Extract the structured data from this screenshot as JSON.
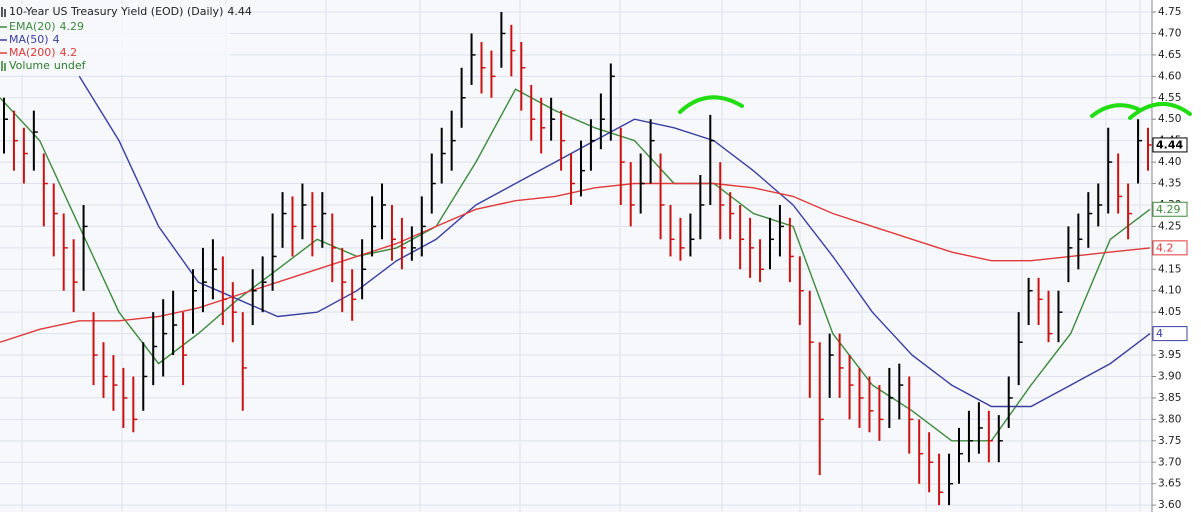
{
  "chart_data": {
    "type": "ohlc",
    "title": "10-Year US Treasury Yield (EOD) (Daily)",
    "last": 4.44,
    "up_color": "#000000",
    "down_color": "#cc1111",
    "high": [
      4.55,
      4.52,
      4.48,
      4.52,
      4.42,
      4.35,
      4.28,
      4.22,
      4.3,
      4.05,
      3.98,
      3.95,
      3.92,
      3.9,
      3.98,
      4.05,
      4.08,
      4.1,
      4.05,
      4.15,
      4.2,
      4.22,
      4.18,
      4.12,
      4.05,
      4.15,
      4.18,
      4.28,
      4.33,
      4.32,
      4.35,
      4.33,
      4.33,
      4.28,
      4.2,
      4.15,
      4.22,
      4.32,
      4.35,
      4.3,
      4.27,
      4.25,
      4.32,
      4.42,
      4.48,
      4.52,
      4.62,
      4.7,
      4.68,
      4.66,
      4.75,
      4.72,
      4.68,
      4.58,
      4.55,
      4.55,
      4.52,
      4.42,
      4.45,
      4.5,
      4.56,
      4.63,
      4.48,
      4.4,
      4.42,
      4.5,
      4.42,
      4.3,
      4.27,
      4.28,
      4.37,
      4.51,
      4.4,
      4.33,
      4.3,
      4.27,
      4.22,
      4.27,
      4.3,
      4.27,
      4.18,
      4.1,
      3.98,
      4.0,
      4.0,
      3.95,
      3.92,
      3.9,
      3.88,
      3.92,
      3.93,
      3.9,
      3.8,
      3.77,
      3.72,
      3.72,
      3.78,
      3.82,
      3.84,
      3.82,
      3.81,
      3.9,
      4.05,
      4.13,
      4.13,
      4.1,
      4.1,
      4.25,
      4.28,
      4.33,
      4.35,
      4.48,
      4.42,
      4.35,
      4.5,
      4.48
    ],
    "low": [
      4.42,
      4.38,
      4.35,
      4.38,
      4.25,
      4.18,
      4.1,
      4.05,
      4.1,
      3.88,
      3.85,
      3.82,
      3.78,
      3.77,
      3.82,
      3.88,
      3.9,
      3.95,
      3.88,
      4.0,
      4.05,
      4.08,
      4.02,
      3.98,
      3.82,
      4.02,
      4.05,
      4.1,
      4.2,
      4.18,
      4.22,
      4.18,
      4.2,
      4.12,
      4.05,
      4.03,
      4.08,
      4.18,
      4.22,
      4.17,
      4.15,
      4.17,
      4.18,
      4.28,
      4.35,
      4.38,
      4.48,
      4.58,
      4.56,
      4.55,
      4.62,
      4.6,
      4.52,
      4.45,
      4.42,
      4.45,
      4.38,
      4.3,
      4.32,
      4.38,
      4.43,
      4.45,
      4.3,
      4.25,
      4.28,
      4.35,
      4.22,
      4.18,
      4.17,
      4.18,
      4.22,
      4.3,
      4.22,
      4.22,
      4.15,
      4.13,
      4.12,
      4.15,
      4.18,
      4.12,
      4.02,
      3.85,
      3.67,
      3.85,
      3.85,
      3.8,
      3.78,
      3.77,
      3.75,
      3.78,
      3.8,
      3.72,
      3.65,
      3.63,
      3.6,
      3.6,
      3.65,
      3.7,
      3.72,
      3.7,
      3.7,
      3.78,
      3.88,
      4.02,
      4.02,
      3.98,
      3.98,
      4.12,
      4.15,
      4.2,
      4.25,
      4.28,
      4.28,
      4.22,
      4.35,
      4.38
    ],
    "close": [
      4.5,
      4.45,
      4.42,
      4.47,
      4.35,
      4.28,
      4.2,
      4.12,
      4.25,
      3.95,
      3.9,
      3.88,
      3.85,
      3.8,
      3.9,
      3.97,
      4.0,
      4.02,
      3.95,
      4.1,
      4.12,
      4.15,
      4.08,
      4.05,
      3.92,
      4.1,
      4.12,
      4.18,
      4.28,
      4.25,
      4.3,
      4.25,
      4.28,
      4.2,
      4.12,
      4.08,
      4.15,
      4.25,
      4.3,
      4.22,
      4.2,
      4.2,
      4.25,
      4.35,
      4.42,
      4.45,
      4.55,
      4.65,
      4.62,
      4.6,
      4.7,
      4.66,
      4.62,
      4.5,
      4.48,
      4.5,
      4.45,
      4.35,
      4.38,
      4.45,
      4.5,
      4.6,
      4.4,
      4.3,
      4.35,
      4.45,
      4.3,
      4.22,
      4.2,
      4.22,
      4.3,
      4.45,
      4.3,
      4.28,
      4.22,
      4.2,
      4.15,
      4.22,
      4.25,
      4.18,
      4.1,
      3.98,
      3.8,
      3.95,
      3.92,
      3.88,
      3.85,
      3.82,
      3.8,
      3.85,
      3.88,
      3.8,
      3.72,
      3.7,
      3.63,
      3.65,
      3.72,
      3.75,
      3.78,
      3.75,
      3.75,
      3.85,
      3.98,
      4.1,
      4.08,
      4.0,
      4.05,
      4.2,
      4.22,
      4.28,
      4.3,
      4.4,
      4.32,
      4.28,
      4.45,
      4.44
    ],
    "lines": [
      {
        "name": "EMA(20)",
        "color": "#3d8a3d",
        "last": 4.29,
        "values": [
          4.55,
          4.45,
          4.25,
          4.05,
          3.93,
          4.0,
          4.08,
          4.15,
          4.22,
          4.18,
          4.2,
          4.25,
          4.4,
          4.57,
          4.52,
          4.48,
          4.45,
          4.35,
          4.35,
          4.28,
          4.25,
          4.0,
          3.88,
          3.82,
          3.75,
          3.75,
          3.88,
          4.0,
          4.22,
          4.29
        ]
      },
      {
        "name": "MA(50)",
        "color": "#3a3fa0",
        "last": 4.0,
        "values": [
          null,
          null,
          4.6,
          4.45,
          4.25,
          4.12,
          4.08,
          4.04,
          4.05,
          4.1,
          4.17,
          4.22,
          4.3,
          4.35,
          4.4,
          4.45,
          4.5,
          4.48,
          4.45,
          4.38,
          4.3,
          4.18,
          4.05,
          3.95,
          3.88,
          3.83,
          3.83,
          3.88,
          3.93,
          4.0
        ]
      },
      {
        "name": "MA(200)",
        "color": "#e03a3a",
        "last": 4.2,
        "values": [
          3.98,
          4.01,
          4.03,
          4.03,
          4.04,
          4.06,
          4.09,
          4.12,
          4.15,
          4.18,
          4.21,
          4.25,
          4.29,
          4.31,
          4.32,
          4.34,
          4.35,
          4.35,
          4.35,
          4.34,
          4.32,
          4.28,
          4.25,
          4.22,
          4.19,
          4.17,
          4.17,
          4.18,
          4.19,
          4.2
        ]
      }
    ],
    "volume": {
      "name": "Volume",
      "value_label": "undef",
      "color": "#2e7d2e"
    },
    "ylim": [
      3.584,
      4.778
    ],
    "yticks": [
      {
        "value": 3.6,
        "label": "3.60"
      },
      {
        "value": 3.65,
        "label": "3.65"
      },
      {
        "value": 3.7,
        "label": "3.70"
      },
      {
        "value": 3.75,
        "label": "3.75"
      },
      {
        "value": 3.8,
        "label": "3.80"
      },
      {
        "value": 3.85,
        "label": "3.85"
      },
      {
        "value": 3.9,
        "label": "3.90"
      },
      {
        "value": 3.95,
        "label": "3.95"
      },
      {
        "value": 4.0,
        "label": "4.00"
      },
      {
        "value": 4.05,
        "label": "4.05"
      },
      {
        "value": 4.1,
        "label": "4.10"
      },
      {
        "value": 4.15,
        "label": "4.15"
      },
      {
        "value": 4.2,
        "label": "4.20"
      },
      {
        "value": 4.25,
        "label": "4.25"
      },
      {
        "value": 4.3,
        "label": "4.30"
      },
      {
        "value": 4.35,
        "label": "4.35"
      },
      {
        "value": 4.4,
        "label": "4.40"
      },
      {
        "value": 4.45,
        "label": "4.45"
      },
      {
        "value": 4.5,
        "label": "4.50"
      },
      {
        "value": 4.55,
        "label": "4.55"
      },
      {
        "value": 4.6,
        "label": "4.60"
      },
      {
        "value": 4.65,
        "label": "4.65"
      },
      {
        "value": 4.7,
        "label": "4.70"
      },
      {
        "value": 4.75,
        "label": "4.75"
      }
    ],
    "grid": true
  }
}
